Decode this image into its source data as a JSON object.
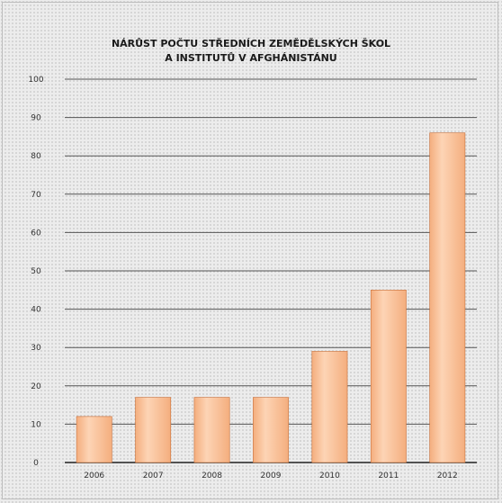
{
  "chart_data": {
    "type": "bar",
    "title_lines": [
      "NÁRŮST POČTU STŘEDNÍCH ZEMĚDĚLSKÝCH ŠKOL",
      "A INSTITUTŮ V AFGHÁNISTÁNU"
    ],
    "categories": [
      "2006",
      "2007",
      "2008",
      "2009",
      "2010",
      "2011",
      "2012"
    ],
    "values": [
      12,
      17,
      17,
      17,
      29,
      45,
      86
    ],
    "ylim": [
      0,
      100
    ],
    "yticks": [
      "0",
      "10",
      "20",
      "30",
      "40",
      "50",
      "60",
      "70",
      "80",
      "90",
      "100"
    ],
    "grid": true,
    "bar_color": "#f4ae7e",
    "bar_highlight": "#fdd4b5",
    "bar_edge": "#c8703a"
  }
}
